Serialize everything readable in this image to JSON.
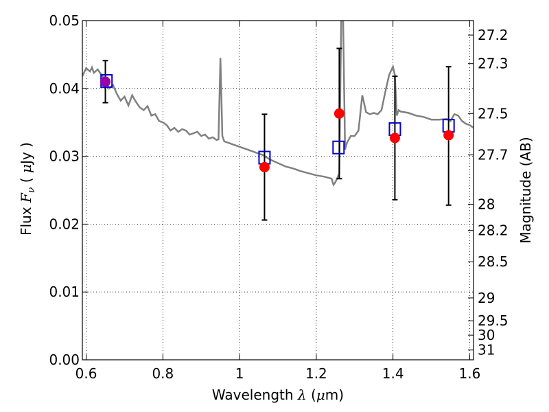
{
  "chart_data": {
    "type": "scatter",
    "title": "",
    "xlabel_parts": {
      "text": "Wavelength",
      "symbol": "λ",
      "unit_open": "(",
      "unit_mu": "μ",
      "unit_rest": "m)"
    },
    "ylabel_parts": {
      "text": "Flux",
      "symbol": "F",
      "subscript": "ν",
      "unit_open": "(",
      "unit_mu": "μ",
      "unit_rest": "Jy )"
    },
    "y2label": "Magnitude (AB)",
    "xlim": [
      0.59,
      1.61
    ],
    "ylim": [
      0.0,
      0.05
    ],
    "grid": true,
    "x_ticks": [
      0.6,
      0.8,
      1.0,
      1.2,
      1.4,
      1.6
    ],
    "x_tick_labels": [
      "0.6",
      "0.8",
      "1",
      "1.2",
      "1.4",
      "1.6"
    ],
    "y_ticks": [
      0.0,
      0.01,
      0.02,
      0.03,
      0.04,
      0.05
    ],
    "y_tick_labels": [
      "0.00",
      "0.01",
      "0.02",
      "0.03",
      "0.04",
      "0.05"
    ],
    "mag_ticks": [
      27.2,
      27.3,
      27.5,
      27.7,
      28,
      28.2,
      28.5,
      29,
      29.5,
      30,
      31
    ],
    "mag_tick_labels": [
      "27.2",
      "27.3",
      "27.5",
      "27.7",
      "28",
      "28.2",
      "28.5",
      "29",
      "29.5",
      "30",
      "31"
    ],
    "colors": {
      "model": "#808080",
      "observed": "#ff0000",
      "model_points": "#0000cc",
      "overlap": "#9900aa",
      "errorbar": "#000000"
    },
    "model_spectrum": {
      "x": [
        0.59,
        0.6,
        0.61,
        0.615,
        0.62,
        0.63,
        0.64,
        0.65,
        0.66,
        0.67,
        0.68,
        0.69,
        0.7,
        0.71,
        0.72,
        0.73,
        0.74,
        0.75,
        0.76,
        0.77,
        0.78,
        0.79,
        0.8,
        0.81,
        0.82,
        0.83,
        0.84,
        0.85,
        0.86,
        0.87,
        0.88,
        0.89,
        0.9,
        0.91,
        0.92,
        0.93,
        0.94,
        0.945,
        0.95,
        0.955,
        0.96,
        0.97,
        0.98,
        1.0,
        1.02,
        1.04,
        1.06,
        1.08,
        1.1,
        1.12,
        1.14,
        1.16,
        1.18,
        1.2,
        1.22,
        1.24,
        1.245,
        1.25,
        1.255,
        1.26,
        1.265,
        1.27,
        1.275,
        1.28,
        1.29,
        1.3,
        1.31,
        1.32,
        1.33,
        1.34,
        1.35,
        1.36,
        1.37,
        1.38,
        1.39,
        1.4,
        1.405,
        1.41,
        1.415,
        1.42,
        1.44,
        1.46,
        1.48,
        1.5,
        1.52,
        1.54,
        1.55,
        1.56,
        1.57,
        1.58,
        1.59,
        1.6,
        1.61
      ],
      "y": [
        0.0418,
        0.043,
        0.0425,
        0.0431,
        0.0423,
        0.0428,
        0.042,
        0.0412,
        0.04,
        0.0405,
        0.0392,
        0.0382,
        0.0388,
        0.0375,
        0.039,
        0.038,
        0.0372,
        0.0368,
        0.0374,
        0.036,
        0.0362,
        0.0352,
        0.035,
        0.0346,
        0.0338,
        0.0342,
        0.0336,
        0.034,
        0.0338,
        0.0332,
        0.0334,
        0.0336,
        0.033,
        0.0332,
        0.0326,
        0.0328,
        0.0324,
        0.0325,
        0.0445,
        0.033,
        0.0322,
        0.032,
        0.0318,
        0.0314,
        0.031,
        0.0306,
        0.0302,
        0.0295,
        0.029,
        0.0285,
        0.0282,
        0.0278,
        0.0275,
        0.0272,
        0.027,
        0.0267,
        0.0258,
        0.0262,
        0.0268,
        0.0275,
        0.05,
        0.05,
        0.031,
        0.032,
        0.033,
        0.033,
        0.0338,
        0.039,
        0.0365,
        0.0362,
        0.0364,
        0.0362,
        0.0368,
        0.0395,
        0.042,
        0.0432,
        0.042,
        0.036,
        0.0368,
        0.0366,
        0.0364,
        0.036,
        0.0358,
        0.0354,
        0.0354,
        0.0355,
        0.0352,
        0.0362,
        0.036,
        0.0352,
        0.0348,
        0.0346,
        0.0342
      ]
    },
    "observed": {
      "x": [
        0.65,
        1.065,
        1.26,
        1.405,
        1.545
      ],
      "y": [
        0.041,
        0.0284,
        0.0363,
        0.0327,
        0.0331
      ],
      "err_lo": [
        0.0031,
        0.0078,
        0.0096,
        0.0091,
        0.0103
      ],
      "err_hi": [
        0.0031,
        0.0078,
        0.0096,
        0.0091,
        0.0101
      ]
    },
    "model_points": {
      "x": [
        0.653,
        1.065,
        1.258,
        1.405,
        1.545
      ],
      "y": [
        0.0411,
        0.0298,
        0.0313,
        0.034,
        0.0345
      ]
    }
  }
}
